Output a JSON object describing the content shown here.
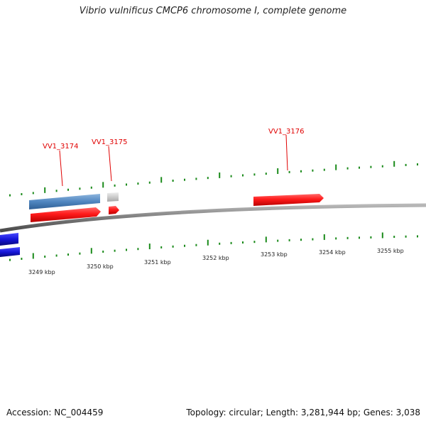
{
  "title": "Vibrio vulnificus CMCP6 chromosome I, complete genome",
  "genes": [
    {
      "label": "VV1_3174"
    },
    {
      "label": "VV1_3175"
    },
    {
      "label": "VV1_3176"
    }
  ],
  "kbp_labels": [
    "3249 kbp",
    "3250 kbp",
    "3251 kbp",
    "3252 kbp",
    "3253 kbp",
    "3254 kbp",
    "3255 kbp"
  ],
  "footer": {
    "accession": "Accession: NC_004459",
    "topology": "Topology: circular; Length: 3,281,944 bp; Genes: 3,038"
  },
  "colors": {
    "forward_cds": "#ff1a1a",
    "blue_feature": "#4f86c0",
    "dark_blue_feature": "#1515d8",
    "grey_feature": "#c8c8c8",
    "backbone": "#8a8a8a",
    "tick": "#1a8a1a",
    "label": "#e00000"
  }
}
